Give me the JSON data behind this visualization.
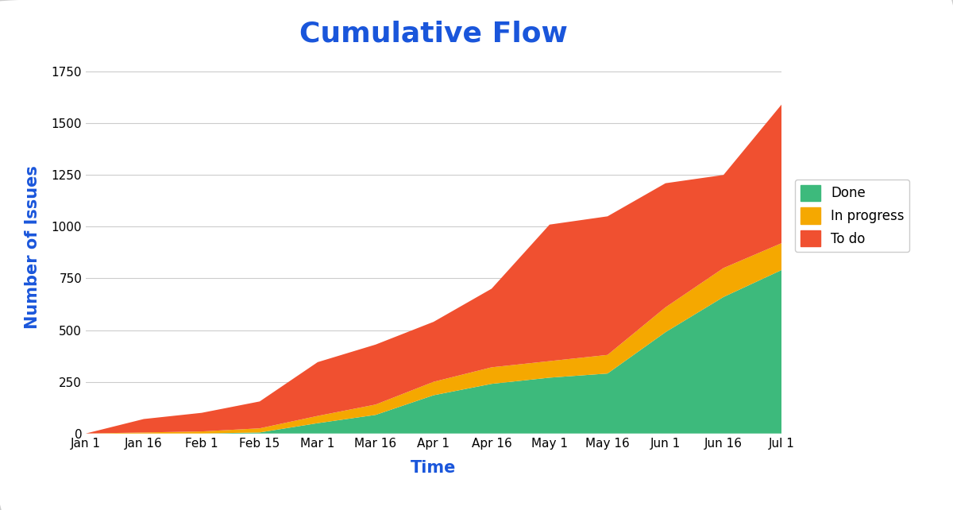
{
  "title": "Cumulative Flow",
  "title_color": "#1a56db",
  "title_fontsize": 26,
  "xlabel": "Time",
  "ylabel": "Number of Issues",
  "axis_label_color": "#1a56db",
  "axis_label_fontsize": 15,
  "background_color": "#ffffff",
  "border_color": "#dddddd",
  "grid_color": "#cccccc",
  "x_labels": [
    "Jan 1",
    "Jan 16",
    "Feb 1",
    "Feb 15",
    "Mar 1",
    "Mar 16",
    "Apr 1",
    "Apr 16",
    "May 1",
    "May 16",
    "Jun 1",
    "Jun 16",
    "Jul 1"
  ],
  "ylim": [
    0,
    1800
  ],
  "yticks": [
    0,
    250,
    500,
    750,
    1000,
    1250,
    1500,
    1750
  ],
  "done_color": "#3dba7c",
  "in_progress_color": "#f5a800",
  "to_do_color": "#f05030",
  "legend_labels": [
    "Done",
    "In progress",
    "To do"
  ],
  "done_values": [
    0,
    0,
    0,
    5,
    50,
    90,
    185,
    240,
    270,
    290,
    490,
    660,
    790
  ],
  "in_progress_values": [
    0,
    5,
    10,
    20,
    35,
    50,
    65,
    80,
    80,
    90,
    120,
    140,
    130
  ],
  "to_do_values": [
    0,
    65,
    90,
    130,
    260,
    290,
    290,
    380,
    660,
    670,
    600,
    450,
    670
  ]
}
